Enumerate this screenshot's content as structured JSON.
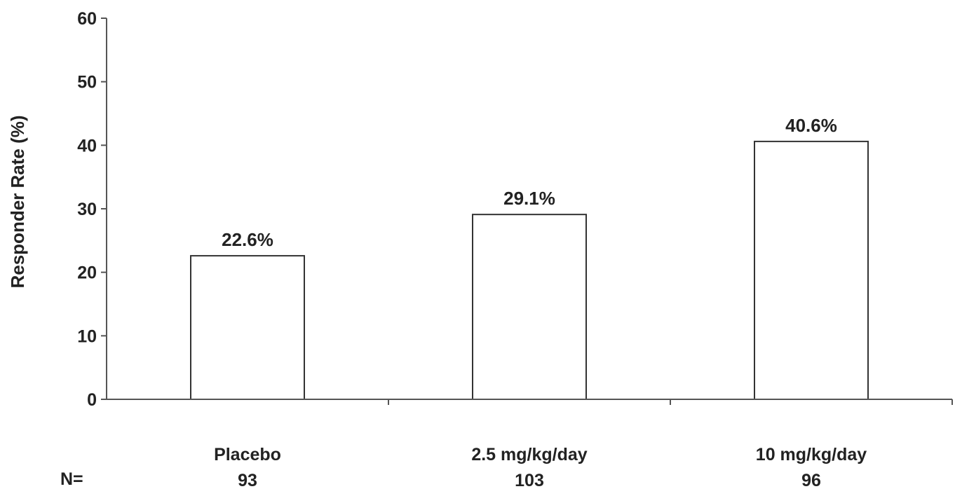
{
  "chart_data": {
    "type": "bar",
    "title": "",
    "xlabel": "",
    "ylabel": "Responder Rate (%)",
    "ylim": [
      0,
      60
    ],
    "yticks": [
      0,
      10,
      20,
      30,
      40,
      50,
      60
    ],
    "categories": [
      "Placebo",
      "2.5 mg/kg/day",
      "10 mg/kg/day"
    ],
    "values": [
      22.6,
      29.1,
      40.6
    ],
    "data_labels": [
      "22.6%",
      "29.1%",
      "40.6%"
    ],
    "n_label": "N=",
    "n_values": [
      "93",
      "103",
      "96"
    ],
    "grid": false,
    "legend": "none",
    "bar_fill": "#ffffff",
    "bar_stroke": "#333333"
  }
}
